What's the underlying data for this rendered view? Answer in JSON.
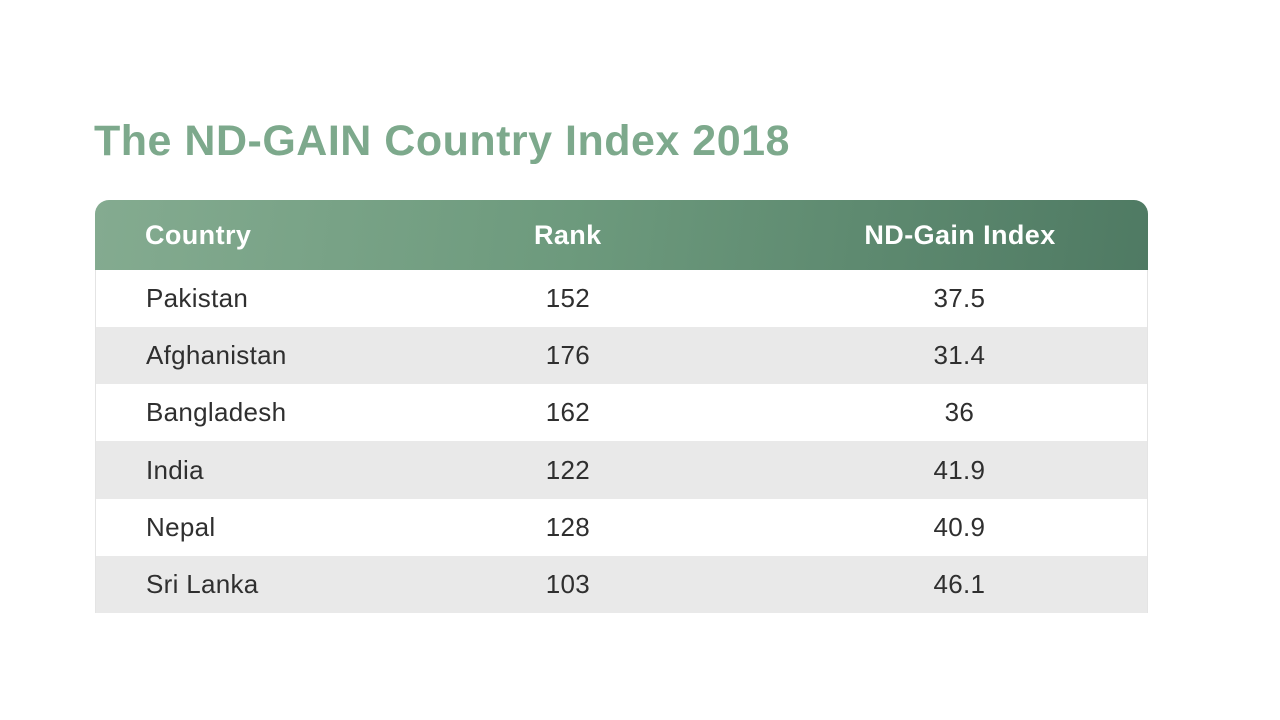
{
  "title": "The ND-GAIN Country Index 2018",
  "colors": {
    "title_green": "#7da98c",
    "header_gradient_left": "#84ab90",
    "header_gradient_right": "#4f7a63",
    "header_text": "#ffffff",
    "row_alt_grey": "#e9e9e9",
    "row_text": "#2f2f2f",
    "background": "#ffffff"
  },
  "table": {
    "columns": [
      {
        "label": "Country"
      },
      {
        "label": "Rank"
      },
      {
        "label": "ND-Gain Index"
      }
    ],
    "rows": [
      {
        "country": "Pakistan",
        "rank": "152",
        "index": "37.5"
      },
      {
        "country": "Afghanistan",
        "rank": "176",
        "index": "31.4"
      },
      {
        "country": "Bangladesh",
        "rank": "162",
        "index": "36"
      },
      {
        "country": "India",
        "rank": "122",
        "index": "41.9"
      },
      {
        "country": "Nepal",
        "rank": "128",
        "index": "40.9"
      },
      {
        "country": "Sri Lanka",
        "rank": "103",
        "index": "46.1"
      }
    ]
  },
  "chart_data": {
    "type": "table",
    "title": "The ND-GAIN Country Index 2018",
    "columns": [
      "Country",
      "Rank",
      "ND-Gain Index"
    ],
    "rows": [
      [
        "Pakistan",
        152,
        37.5
      ],
      [
        "Afghanistan",
        176,
        31.4
      ],
      [
        "Bangladesh",
        162,
        36
      ],
      [
        "India",
        122,
        41.9
      ],
      [
        "Nepal",
        128,
        40.9
      ],
      [
        "Sri Lanka",
        103,
        46.1
      ]
    ],
    "layout": {
      "header_style": "green gradient, rounded top corners, white bold text",
      "row_striping": "white / light grey alternating starting with white",
      "column_alignment": [
        "left",
        "center",
        "center"
      ]
    }
  }
}
